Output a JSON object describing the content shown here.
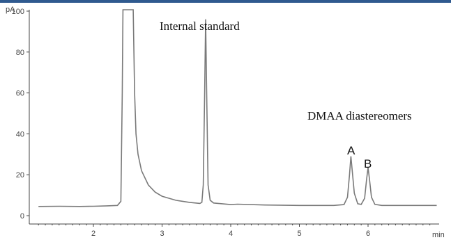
{
  "chart_data": {
    "type": "line",
    "title": "",
    "xlabel": "min",
    "ylabel": "pA",
    "xlim": [
      1.2,
      7.0
    ],
    "ylim": [
      -4,
      110
    ],
    "xticks": [
      2,
      3,
      4,
      5,
      6
    ],
    "yticks": [
      0,
      20,
      40,
      60,
      80,
      100
    ],
    "x_tick_labels": [
      "2",
      "3",
      "4",
      "5",
      "6"
    ],
    "y_tick_labels": [
      "0",
      "20",
      "40",
      "60",
      "80",
      "100"
    ],
    "grid": false,
    "series": [
      {
        "color": "#7a7a7a",
        "x": [
          1.2,
          1.5,
          1.8,
          2.0,
          2.2,
          2.35,
          2.4,
          2.42,
          2.43,
          2.45,
          2.5,
          2.55,
          2.58,
          2.6,
          2.62,
          2.65,
          2.7,
          2.8,
          2.9,
          3.0,
          3.2,
          3.4,
          3.55,
          3.58,
          3.6,
          3.62,
          3.635,
          3.65,
          3.67,
          3.7,
          3.75,
          4.0,
          4.1,
          4.5,
          5.0,
          5.5,
          5.65,
          5.7,
          5.73,
          5.75,
          5.77,
          5.8,
          5.85,
          5.9,
          5.95,
          5.98,
          6.0,
          6.02,
          6.05,
          6.1,
          6.2,
          6.5,
          7.0
        ],
        "y": [
          4.5,
          4.6,
          4.5,
          4.6,
          4.8,
          5.0,
          7.0,
          60,
          115,
          115,
          115,
          115,
          115,
          60,
          40,
          30,
          22,
          15,
          11.5,
          9.5,
          7.5,
          6.5,
          6.0,
          6.5,
          15,
          60,
          96,
          60,
          15,
          7.5,
          6.2,
          5.4,
          5.6,
          5.2,
          5.0,
          5.0,
          5.4,
          9.0,
          20,
          29,
          22,
          11,
          5.8,
          5.5,
          8.5,
          18,
          23.5,
          18,
          9,
          5.5,
          5.0,
          5.0,
          5.0
        ]
      }
    ],
    "annotations": [
      {
        "text": "Internal standard",
        "x": 3.64,
        "y": 104
      },
      {
        "text": "DMAA diastereomers",
        "x": 5.75,
        "y": 63
      },
      {
        "text": "A",
        "x": 5.75,
        "y": 33
      },
      {
        "text": "B",
        "x": 6.03,
        "y": 27
      }
    ]
  }
}
